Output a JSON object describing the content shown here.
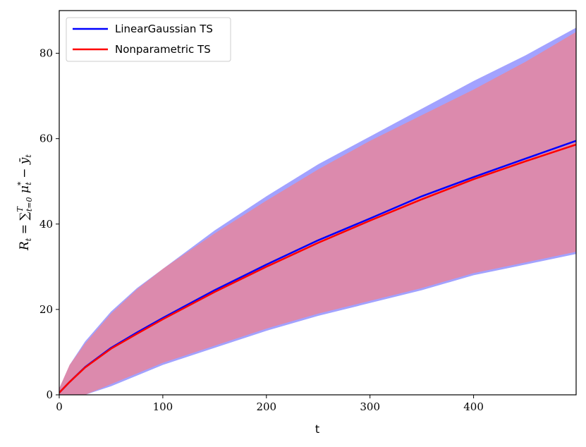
{
  "chart_data": {
    "type": "line",
    "title": "",
    "xlabel": "t",
    "ylabel": "R_t = Σ_{t=0}^{T} μ*_t − ȳ_t",
    "ylabel_parts": {
      "lhs": "R",
      "lhs_sub": "t",
      "eq": " = ",
      "sum": "∑",
      "sum_sup": "T",
      "sum_sub": "t=0",
      "mu": " μ",
      "mu_sup": "*",
      "mu_sub": "t",
      "minus": " − ",
      "ybar": "ȳ",
      "ybar_sub": "t"
    },
    "xlim": [
      0,
      499
    ],
    "ylim": [
      0,
      90
    ],
    "xticks": [
      0,
      100,
      200,
      300,
      400
    ],
    "yticks": [
      0,
      20,
      40,
      60,
      80
    ],
    "grid": false,
    "legend_position": "top-left",
    "series": [
      {
        "name": "LinearGaussian TS",
        "color": "#0000ff",
        "band_color": "#7b7bff",
        "mean": {
          "x": [
            0,
            10,
            25,
            50,
            75,
            100,
            150,
            200,
            250,
            300,
            350,
            400,
            450,
            499
          ],
          "y": [
            0.5,
            3.0,
            6.5,
            11.0,
            14.6,
            18.0,
            24.5,
            30.5,
            36.2,
            41.3,
            46.5,
            51.0,
            55.3,
            59.5
          ]
        },
        "upper": {
          "x": [
            0,
            10,
            25,
            50,
            75,
            100,
            150,
            200,
            250,
            300,
            350,
            400,
            450,
            499
          ],
          "y": [
            1.5,
            7.0,
            12.5,
            19.5,
            25.0,
            29.5,
            38.5,
            46.5,
            54.0,
            60.5,
            67.0,
            73.5,
            79.5,
            86.0
          ]
        },
        "lower": {
          "x": [
            0,
            10,
            25,
            50,
            75,
            100,
            150,
            200,
            250,
            300,
            350,
            400,
            450,
            499
          ],
          "y": [
            0,
            0,
            0,
            2.0,
            4.5,
            7.0,
            11.0,
            15.0,
            18.5,
            21.5,
            24.5,
            28.0,
            30.5,
            33.0
          ]
        }
      },
      {
        "name": "Nonparametric TS",
        "color": "#ff0000",
        "band_color": "#ff7b7b",
        "mean": {
          "x": [
            0,
            10,
            25,
            50,
            75,
            100,
            150,
            200,
            250,
            300,
            350,
            400,
            450,
            499
          ],
          "y": [
            0.5,
            3.0,
            6.4,
            10.8,
            14.3,
            17.7,
            24.1,
            30.0,
            35.6,
            40.8,
            45.8,
            50.5,
            54.7,
            58.6
          ]
        },
        "upper": {
          "x": [
            0,
            10,
            25,
            50,
            75,
            100,
            150,
            200,
            250,
            300,
            350,
            400,
            450,
            499
          ],
          "y": [
            1.5,
            7.0,
            12.0,
            19.0,
            24.7,
            29.5,
            37.8,
            45.5,
            52.8,
            59.5,
            65.5,
            71.5,
            78.0,
            85.0
          ]
        },
        "lower": {
          "x": [
            0,
            10,
            25,
            50,
            75,
            100,
            150,
            200,
            250,
            300,
            350,
            400,
            450,
            499
          ],
          "y": [
            0,
            0,
            0,
            2.5,
            5.0,
            7.5,
            11.5,
            15.5,
            19.0,
            22.0,
            25.0,
            28.5,
            31.0,
            33.5
          ]
        }
      }
    ]
  }
}
